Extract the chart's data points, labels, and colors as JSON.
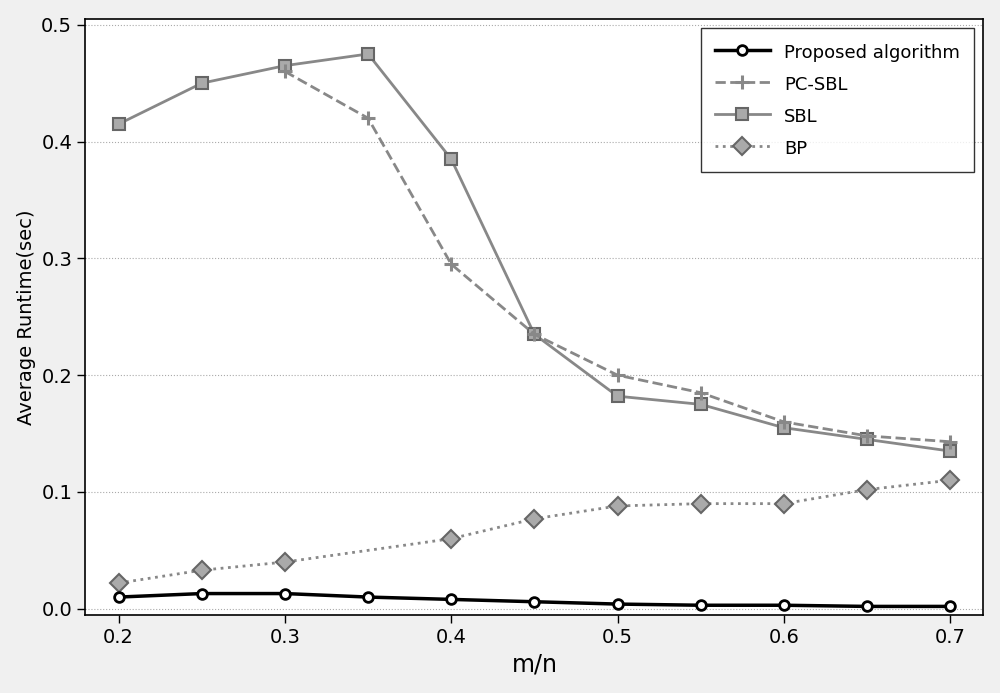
{
  "x": [
    0.2,
    0.25,
    0.3,
    0.35,
    0.4,
    0.45,
    0.5,
    0.55,
    0.6,
    0.65,
    0.7
  ],
  "proposed": [
    0.01,
    0.013,
    0.013,
    0.01,
    0.008,
    0.006,
    0.004,
    0.003,
    0.003,
    0.002,
    0.002
  ],
  "pc_sbl": [
    null,
    null,
    0.46,
    0.42,
    0.295,
    0.235,
    0.2,
    0.185,
    0.16,
    0.148,
    0.143
  ],
  "sbl": [
    0.415,
    0.45,
    0.465,
    0.475,
    0.385,
    0.235,
    0.182,
    0.175,
    0.155,
    0.145,
    0.135
  ],
  "bp": [
    0.022,
    0.033,
    0.04,
    null,
    0.06,
    0.077,
    0.088,
    0.09,
    0.09,
    0.102,
    0.11
  ],
  "proposed_color": "#000000",
  "pc_sbl_color": "#888888",
  "sbl_color": "#888888",
  "bp_color": "#888888",
  "xlabel": "m/n",
  "ylabel": "Average Runtime(sec)",
  "xlim": [
    0.18,
    0.72
  ],
  "ylim": [
    -0.005,
    0.505
  ],
  "yticks": [
    0.0,
    0.1,
    0.2,
    0.3,
    0.4,
    0.5
  ],
  "xticks": [
    0.2,
    0.3,
    0.4,
    0.5,
    0.6,
    0.7
  ],
  "legend_labels": [
    "Proposed algorithm",
    "PC-SBL",
    "SBL",
    "BP"
  ],
  "fig_facecolor": "#f0f0f0",
  "ax_facecolor": "#ffffff"
}
